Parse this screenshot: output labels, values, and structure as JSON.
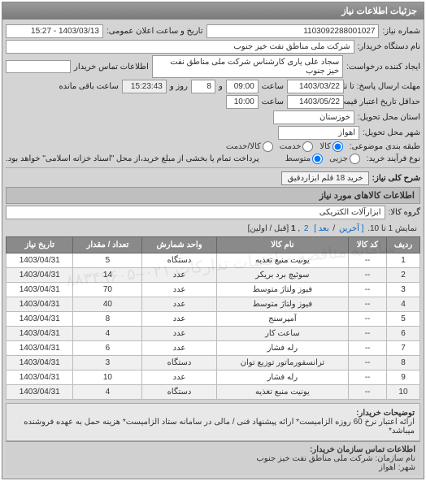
{
  "panel_title": "جزئیات اطلاعات نیاز",
  "header": {
    "labels": {
      "number": "شماره نیاز:",
      "public_announce": "تاریخ و ساعت اعلان عمومی:",
      "buyer_org": "نام دستگاه خریدار:",
      "requester": "ایجاد کننده درخواست:",
      "buyer_contact": "اطلاعات تماس خریدار",
      "deadline_send": "مهلت ارسال پاسخ: تا تاریخ:",
      "deadline_to": "حداقل تاریخ اعتبار قیمت: تا تاریخ:",
      "delivery_province": "استان محل تحویل:",
      "delivery_city": "شهر محل تحویل:",
      "packaging": "طبقه بندی موضوعی:",
      "payment_method": "نوع فرآیند خرید:",
      "time_hour": "ساعت",
      "time_and": "و",
      "time_days": "روز و",
      "time_remain": "ساعت باقی مانده"
    },
    "values": {
      "number": "1103092288001027",
      "public_announce": "1403/03/13 - 15:27",
      "buyer_org": "شرکت ملی مناطق نفت خیز جنوب",
      "requester": "سجاد علی یاری کارشناس شرکت ملی مناطق نفت خیز جنوب",
      "buyer_contact": "",
      "date1": "1403/03/22",
      "time1": "09:00",
      "days_remain": "8",
      "time_remain": "15:23:43",
      "date2": "1403/05/22",
      "time2": "10:00",
      "province": "خوزستان",
      "city": "اهواز"
    },
    "radios": {
      "pkg_goods": "کالا",
      "pkg_service": "خدمت",
      "pkg_both": "کالا/خدمت",
      "pay_low": "جزیی",
      "pay_mid": "متوسط",
      "pay_note": "پرداخت تمام یا بخشی از مبلغ خرید،از محل \"اسناد خزانه اسلامی\" خواهد بود."
    }
  },
  "summary": {
    "label": "شرح کلی نیاز:",
    "value": "خرید 18 قلم ابزاردقیق"
  },
  "goods_section": {
    "title": "اطلاعات کالاهای مورد نیاز",
    "group_label": "گروه کالا:",
    "group_value": "ابزارآلات الکتریکی"
  },
  "pager": {
    "text_prefix": "نمایش 1 تا 10.",
    "last": "[ آخرین",
    "next": "بعد ]",
    "p2": "2",
    "p1": "1",
    "suffix": "[قبل / اولین]"
  },
  "table": {
    "headers": [
      "ردیف",
      "کد کالا",
      "نام کالا",
      "واحد شمارش",
      "تعداد / مقدار",
      "تاریخ نیاز"
    ],
    "rows": [
      [
        "1",
        "--",
        "یونیت منبع تغذیه",
        "دستگاه",
        "5",
        "1403/04/31"
      ],
      [
        "2",
        "--",
        "سوئیچ برد بریکر",
        "عدد",
        "14",
        "1403/04/31"
      ],
      [
        "3",
        "--",
        "فیوز ولتاژ متوسط",
        "عدد",
        "70",
        "1403/04/31"
      ],
      [
        "4",
        "--",
        "فیوز ولتاژ متوسط",
        "عدد",
        "40",
        "1403/04/31"
      ],
      [
        "5",
        "--",
        "آمپرسنج",
        "عدد",
        "8",
        "1403/04/31"
      ],
      [
        "6",
        "--",
        "ساعت کار",
        "عدد",
        "4",
        "1403/04/31"
      ],
      [
        "7",
        "--",
        "رله فشار",
        "عدد",
        "6",
        "1403/04/31"
      ],
      [
        "8",
        "--",
        "ترانسفورماتور توزیع توان",
        "دستگاه",
        "3",
        "1403/04/31"
      ],
      [
        "9",
        "--",
        "رله فشار",
        "عدد",
        "10",
        "1403/04/31"
      ],
      [
        "10",
        "--",
        "یونیت منبع تغذیه",
        "دستگاه",
        "4",
        "1403/04/31"
      ]
    ]
  },
  "note": {
    "label": "توضیحات خریدار:",
    "text": "ارائه اعتبار نرخ 60 روزه الزامیست* ارائه پیشنهاد فنی / مالی در سامانه ستاد الزامیست* هزینه حمل به عهده فروشنده میباشد*"
  },
  "contact": {
    "title": "اطلاعات تماس سازمان خریدار:",
    "org_label": "نام سازمان:",
    "org_value": "شرکت ملی مناطق نفت خیز جنوب",
    "city_label": "شهر:",
    "city_value": "اهواز"
  },
  "watermark": "سامانه مناقصه مناقصات تدارکات\n۰۲۱–۸۸۳۴۹۶۰۵"
}
